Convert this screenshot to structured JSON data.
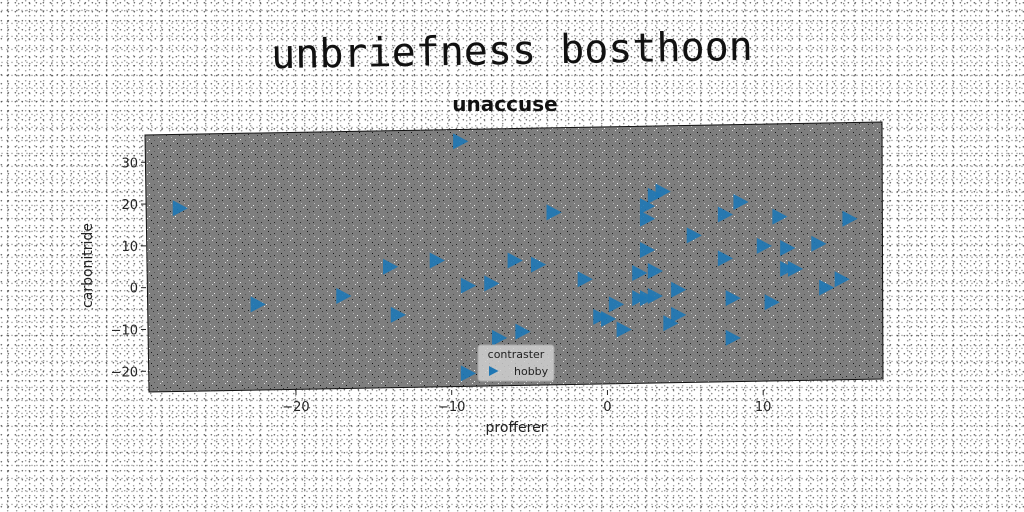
{
  "title": "unbriefness bosthoon",
  "chart_data": {
    "type": "scatter",
    "title": "unaccuse",
    "xlabel": "profferer",
    "ylabel": "carbonitride",
    "xlim": [
      -29.5,
      17.5
    ],
    "ylim": [
      -24,
      37
    ],
    "xticks": [
      -20,
      -10,
      0,
      10
    ],
    "yticks": [
      -20,
      -10,
      0,
      10,
      20,
      30
    ],
    "grid": false,
    "marker": "triangle-right",
    "legend": {
      "title": "contraster",
      "placement": "bottom-center"
    },
    "series": [
      {
        "name": "hobby",
        "color": "#1f77b4",
        "points": [
          [
            -27.5,
            19
          ],
          [
            -22.5,
            -4
          ],
          [
            -17,
            -2
          ],
          [
            -14,
            5
          ],
          [
            -13.5,
            -6.5
          ],
          [
            -11,
            6.5
          ],
          [
            -9.5,
            35
          ],
          [
            -9,
            0.5
          ],
          [
            -9,
            -20.5
          ],
          [
            -7.5,
            1
          ],
          [
            -7,
            -12
          ],
          [
            -6,
            6.5
          ],
          [
            -5.5,
            -10.5
          ],
          [
            -4.5,
            5.5
          ],
          [
            -3.5,
            18
          ],
          [
            -1.5,
            2
          ],
          [
            -0.5,
            -7
          ],
          [
            0,
            -7.5
          ],
          [
            0.5,
            -4
          ],
          [
            1,
            -10
          ],
          [
            2,
            3.5
          ],
          [
            2,
            -2.5
          ],
          [
            2.5,
            9
          ],
          [
            2.5,
            -2.5
          ],
          [
            2.5,
            16.5
          ],
          [
            2.5,
            19.5
          ],
          [
            3,
            22
          ],
          [
            3,
            4
          ],
          [
            3,
            -2
          ],
          [
            3.5,
            23
          ],
          [
            4,
            -8.5
          ],
          [
            4.5,
            -6.5
          ],
          [
            4.5,
            -0.5
          ],
          [
            5.5,
            12.5
          ],
          [
            7.5,
            17.5
          ],
          [
            7.5,
            7
          ],
          [
            8,
            -2.5
          ],
          [
            8,
            -12
          ],
          [
            8.5,
            20.5
          ],
          [
            10,
            10
          ],
          [
            10.5,
            -3.5
          ],
          [
            11,
            17
          ],
          [
            11.5,
            4.5
          ],
          [
            11.5,
            9.5
          ],
          [
            12,
            4.5
          ],
          [
            13.5,
            10.5
          ],
          [
            14,
            0
          ],
          [
            15,
            2
          ],
          [
            15.5,
            16.5
          ]
        ]
      }
    ]
  }
}
